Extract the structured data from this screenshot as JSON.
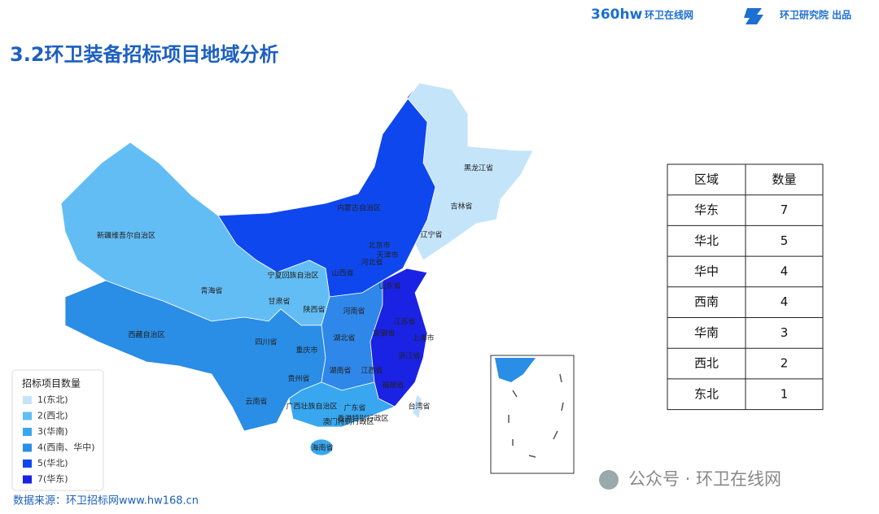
{
  "header": {
    "title": "3.2环卫装备招标项目地域分析",
    "logo_left": "360hw",
    "logo_left_text": "环卫在线网",
    "logo_right": "环卫研究院 出品"
  },
  "map": {
    "labels": [
      "黑龙江省",
      "吉林省",
      "辽宁省",
      "内蒙古自治区",
      "北京市",
      "天津市",
      "河北省",
      "山西省",
      "山东省",
      "宁夏回族自治区",
      "甘肃省",
      "陕西省",
      "河南省",
      "新疆维吾尔自治区",
      "青海省",
      "西藏自治区",
      "四川省",
      "重庆市",
      "湖北省",
      "江苏省",
      "安徽省",
      "上海市",
      "浙江省",
      "湖南省",
      "江西省",
      "贵州省",
      "福建省",
      "云南省",
      "广西壮族自治区",
      "广东省",
      "台湾省",
      "香港特别行政区",
      "澳门特别行政区",
      "海南省"
    ]
  },
  "legend": {
    "title": "招标项目数量",
    "items": [
      "1(东北)",
      "2(西北)",
      "3(华南)",
      "4(西南、华中)",
      "5(华北)",
      "7(华东)"
    ]
  },
  "table": {
    "columns": [
      "区域",
      "数量"
    ],
    "rows": [
      [
        "华东",
        7
      ],
      [
        "华北",
        5
      ],
      [
        "华中",
        4
      ],
      [
        "西南",
        4
      ],
      [
        "华南",
        3
      ],
      [
        "西北",
        2
      ],
      [
        "东北",
        1
      ]
    ]
  },
  "source": "数据来源：环卫招标网www.hw168.cn",
  "watermark": "公众号 · 环卫在线网"
}
